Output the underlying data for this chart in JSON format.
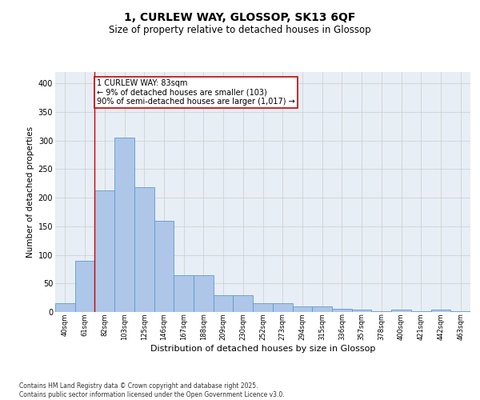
{
  "title1": "1, CURLEW WAY, GLOSSOP, SK13 6QF",
  "title2": "Size of property relative to detached houses in Glossop",
  "xlabel": "Distribution of detached houses by size in Glossop",
  "ylabel": "Number of detached properties",
  "bar_labels": [
    "40sqm",
    "61sqm",
    "82sqm",
    "103sqm",
    "125sqm",
    "146sqm",
    "167sqm",
    "188sqm",
    "209sqm",
    "230sqm",
    "252sqm",
    "273sqm",
    "294sqm",
    "315sqm",
    "336sqm",
    "357sqm",
    "378sqm",
    "400sqm",
    "421sqm",
    "442sqm",
    "463sqm"
  ],
  "bar_values": [
    15,
    90,
    213,
    305,
    218,
    160,
    65,
    65,
    30,
    30,
    16,
    16,
    10,
    10,
    6,
    4,
    2,
    4,
    2,
    4,
    2
  ],
  "bar_color": "#aec6e8",
  "bar_edge_color": "#5b9bd5",
  "highlight_index": 2,
  "vline_color": "#cc0000",
  "annotation_box_text": "1 CURLEW WAY: 83sqm\n← 9% of detached houses are smaller (103)\n90% of semi-detached houses are larger (1,017) →",
  "annotation_box_color": "#cc0000",
  "ylim": [
    0,
    420
  ],
  "yticks": [
    0,
    50,
    100,
    150,
    200,
    250,
    300,
    350,
    400
  ],
  "grid_color": "#cccccc",
  "bg_color": "#e8eef5",
  "footer_text": "Contains HM Land Registry data © Crown copyright and database right 2025.\nContains public sector information licensed under the Open Government Licence v3.0.",
  "title_fontsize": 10,
  "subtitle_fontsize": 8.5,
  "ylabel_fontsize": 7.5,
  "xlabel_fontsize": 8,
  "tick_fontsize": 6,
  "footer_fontsize": 5.5,
  "ann_fontsize": 7
}
